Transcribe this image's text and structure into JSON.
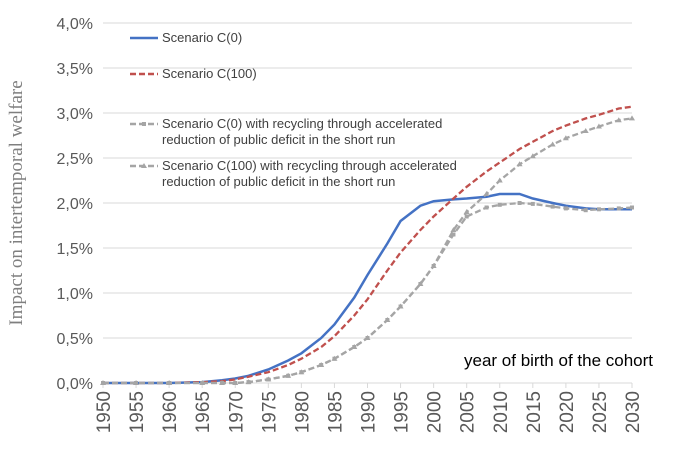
{
  "chart_data": {
    "type": "line",
    "y_label": "Impact on intertemporal welfare",
    "annotation": "year of birth of the cohort",
    "x": [
      1950,
      1955,
      1960,
      1965,
      1968,
      1970,
      1972,
      1975,
      1978,
      1980,
      1983,
      1985,
      1988,
      1990,
      1993,
      1995,
      1998,
      2000,
      2003,
      2005,
      2008,
      2010,
      2013,
      2015,
      2018,
      2020,
      2023,
      2025,
      2028,
      2030
    ],
    "xlim": [
      1950,
      2030
    ],
    "xticks": [
      1950,
      1955,
      1960,
      1965,
      1970,
      1975,
      1980,
      1985,
      1990,
      1995,
      2000,
      2005,
      2010,
      2015,
      2020,
      2025,
      2030
    ],
    "ylim": [
      0,
      4
    ],
    "yticks": [
      {
        "value": 0,
        "label": "0,0%"
      },
      {
        "value": 0.5,
        "label": "0,5%"
      },
      {
        "value": 1,
        "label": "1,0%"
      },
      {
        "value": 1.5,
        "label": "1,5%"
      },
      {
        "value": 2,
        "label": "2,0%"
      },
      {
        "value": 2.5,
        "label": "2,5%"
      },
      {
        "value": 3,
        "label": "3,0%"
      },
      {
        "value": 3.5,
        "label": "3,5%"
      },
      {
        "value": 4,
        "label": "4,0%"
      }
    ],
    "grid": true,
    "series": [
      {
        "name": "Scenario C(0)",
        "color": "#4472c4",
        "style": "solid",
        "marker": "none",
        "values": [
          0,
          0,
          0,
          0.01,
          0.03,
          0.05,
          0.08,
          0.15,
          0.25,
          0.33,
          0.5,
          0.65,
          0.95,
          1.2,
          1.55,
          1.8,
          1.97,
          2.02,
          2.04,
          2.05,
          2.07,
          2.1,
          2.1,
          2.05,
          2.0,
          1.97,
          1.94,
          1.93,
          1.93,
          1.93
        ]
      },
      {
        "name": "Scenario C(100)",
        "color": "#c0504d",
        "style": "dashed",
        "marker": "none",
        "values": [
          0,
          0,
          0,
          0.01,
          0.02,
          0.04,
          0.07,
          0.12,
          0.2,
          0.27,
          0.4,
          0.52,
          0.75,
          0.93,
          1.25,
          1.45,
          1.7,
          1.85,
          2.05,
          2.18,
          2.35,
          2.45,
          2.6,
          2.68,
          2.8,
          2.86,
          2.94,
          2.98,
          3.05,
          3.07
        ]
      },
      {
        "name": "Scenario C(0) with recycling through accelerated reduction of public deficit in the short run",
        "color": "#a5a5a5",
        "style": "dashed",
        "marker": "square",
        "values": [
          0,
          0,
          0,
          0,
          0,
          0,
          0.01,
          0.04,
          0.08,
          0.12,
          0.2,
          0.27,
          0.4,
          0.5,
          0.7,
          0.85,
          1.1,
          1.3,
          1.65,
          1.85,
          1.95,
          1.98,
          2.0,
          1.99,
          1.96,
          1.94,
          1.92,
          1.93,
          1.94,
          1.95
        ]
      },
      {
        "name": "Scenario C(100) with recycling through accelerated reduction of public deficit in the short run",
        "color": "#a5a5a5",
        "style": "dashed",
        "marker": "triangle",
        "values": [
          0,
          0,
          0,
          0,
          0,
          0,
          0.01,
          0.04,
          0.08,
          0.12,
          0.2,
          0.27,
          0.4,
          0.5,
          0.7,
          0.85,
          1.1,
          1.3,
          1.7,
          1.9,
          2.1,
          2.25,
          2.43,
          2.52,
          2.65,
          2.72,
          2.8,
          2.85,
          2.92,
          2.94
        ]
      }
    ]
  }
}
